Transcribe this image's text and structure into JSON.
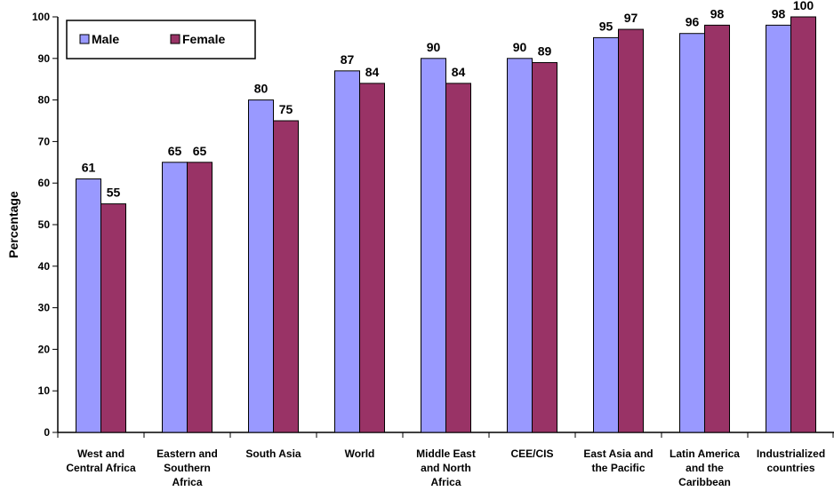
{
  "chart_data": {
    "type": "bar",
    "ylabel": "Percentage",
    "xlabel": "",
    "ylim": [
      0,
      100
    ],
    "yticks": [
      0,
      10,
      20,
      30,
      40,
      50,
      60,
      70,
      80,
      90,
      100
    ],
    "grid": false,
    "legend_position": "top-left",
    "categories": [
      [
        "West and",
        "Central Africa"
      ],
      [
        "Eastern and",
        "Southern",
        "Africa"
      ],
      [
        "South Asia"
      ],
      [
        "World"
      ],
      [
        "Middle East",
        "and North",
        "Africa"
      ],
      [
        "CEE/CIS"
      ],
      [
        "East Asia and",
        "the Pacific"
      ],
      [
        "Latin America",
        "and the",
        "Caribbean"
      ],
      [
        "Industrialized",
        "countries"
      ]
    ],
    "series": [
      {
        "name": "Male",
        "color": "#9999ff",
        "values": [
          61,
          65,
          80,
          87,
          90,
          90,
          95,
          96,
          98
        ]
      },
      {
        "name": "Female",
        "color": "#993366",
        "values": [
          55,
          65,
          75,
          84,
          84,
          89,
          97,
          98,
          100
        ]
      }
    ]
  }
}
